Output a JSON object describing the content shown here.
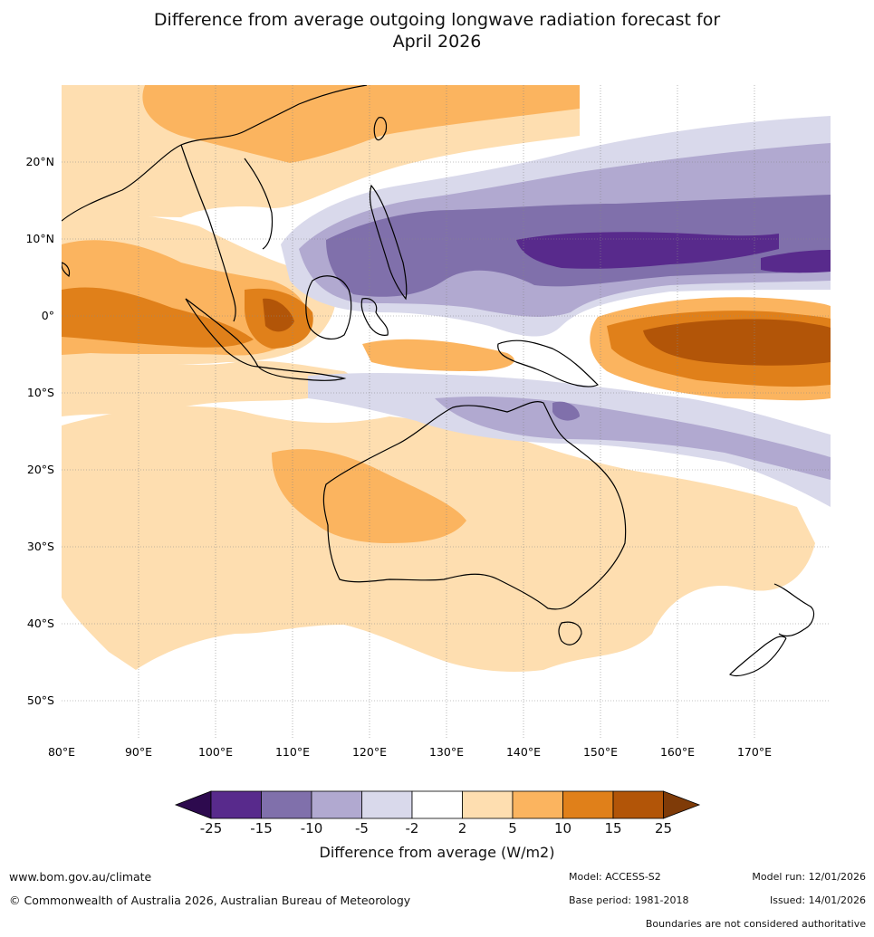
{
  "title_line1": "Difference from average outgoing longwave radiation forecast for",
  "title_line2": "April 2026",
  "lat_labels": [
    "20°N",
    "10°N",
    "0°",
    "10°S",
    "20°S",
    "30°S",
    "40°S",
    "50°S"
  ],
  "lon_labels": [
    "80°E",
    "90°E",
    "100°E",
    "110°E",
    "120°E",
    "130°E",
    "140°E",
    "150°E",
    "160°E",
    "170°E"
  ],
  "colorbar": {
    "ticks": [
      "-25",
      "-15",
      "-10",
      "-5",
      "-2",
      "2",
      "5",
      "10",
      "15",
      "25"
    ],
    "colors": [
      "#2d0a4e",
      "#582a8c",
      "#8070ab",
      "#b1a9d0",
      "#d9d9eb",
      "#ffffff",
      "#fedeb0",
      "#fbb45f",
      "#e0801a",
      "#b25508",
      "#7f3b08"
    ],
    "title": "Difference from average (W/m2)"
  },
  "footer": {
    "website": "www.bom.gov.au/climate",
    "copyright": "© Commonwealth of Australia 2026, Australian Bureau of Meteorology",
    "model": "Model: ACCESS-S2",
    "model_run": "Model run: 12/01/2026",
    "base_period": "Base period: 1981-2018",
    "issued": "Issued: 14/01/2026",
    "boundaries": "Boundaries are not considered authoritative"
  },
  "icons": [
    "map-area",
    "colorbar"
  ]
}
